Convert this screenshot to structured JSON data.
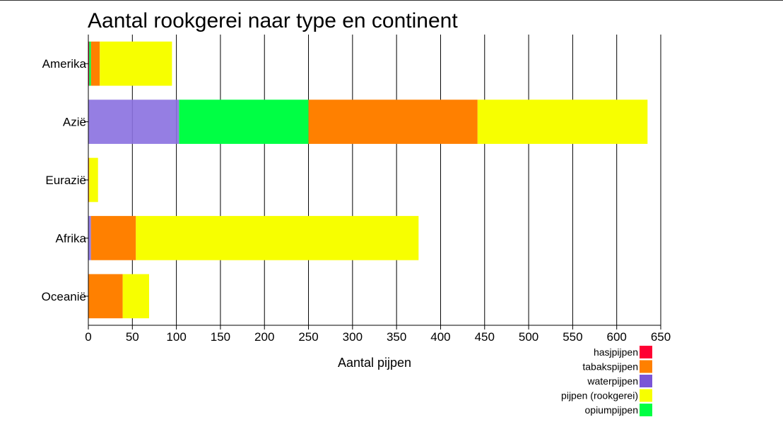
{
  "chart_data": {
    "type": "bar",
    "orientation": "horizontal",
    "stacked": true,
    "title": "Aantal rookgerei naar type en continent",
    "xlabel": "Aantal pijpen",
    "ylabel": "",
    "xlim": [
      0,
      650
    ],
    "xticks": [
      0,
      50,
      100,
      150,
      200,
      250,
      300,
      350,
      400,
      450,
      500,
      550,
      600,
      650
    ],
    "grid": true,
    "legend_position": "bottom-right",
    "categories": [
      "Amerika",
      "Azië",
      "Eurazië",
      "Afrika",
      "Oceanië"
    ],
    "series": [
      {
        "name": "hasjpijpen",
        "color": "#ff0033",
        "values": [
          1,
          0,
          0,
          0,
          0
        ]
      },
      {
        "name": "waterpijpen",
        "color": "#8a70e0",
        "values": [
          0,
          103,
          0,
          3,
          0
        ]
      },
      {
        "name": "opiumpijpen",
        "color": "#00ff44",
        "values": [
          2,
          147,
          0,
          0,
          0
        ]
      },
      {
        "name": "tabakspijpen",
        "color": "#ff8000",
        "values": [
          10,
          192,
          1,
          51,
          39
        ]
      },
      {
        "name": "pijpen (rookgerei)",
        "color": "#f7ff00",
        "values": [
          82,
          193,
          10,
          321,
          30
        ]
      }
    ],
    "legend": [
      {
        "name": "hasjpijpen",
        "color": "#ff0033"
      },
      {
        "name": "tabakspijpen",
        "color": "#ff8000"
      },
      {
        "name": "waterpijpen",
        "color": "#7a55d8"
      },
      {
        "name": "pijpen (rookgerei)",
        "color": "#f7ff00"
      },
      {
        "name": "opiumpijpen",
        "color": "#00ff44"
      }
    ]
  }
}
